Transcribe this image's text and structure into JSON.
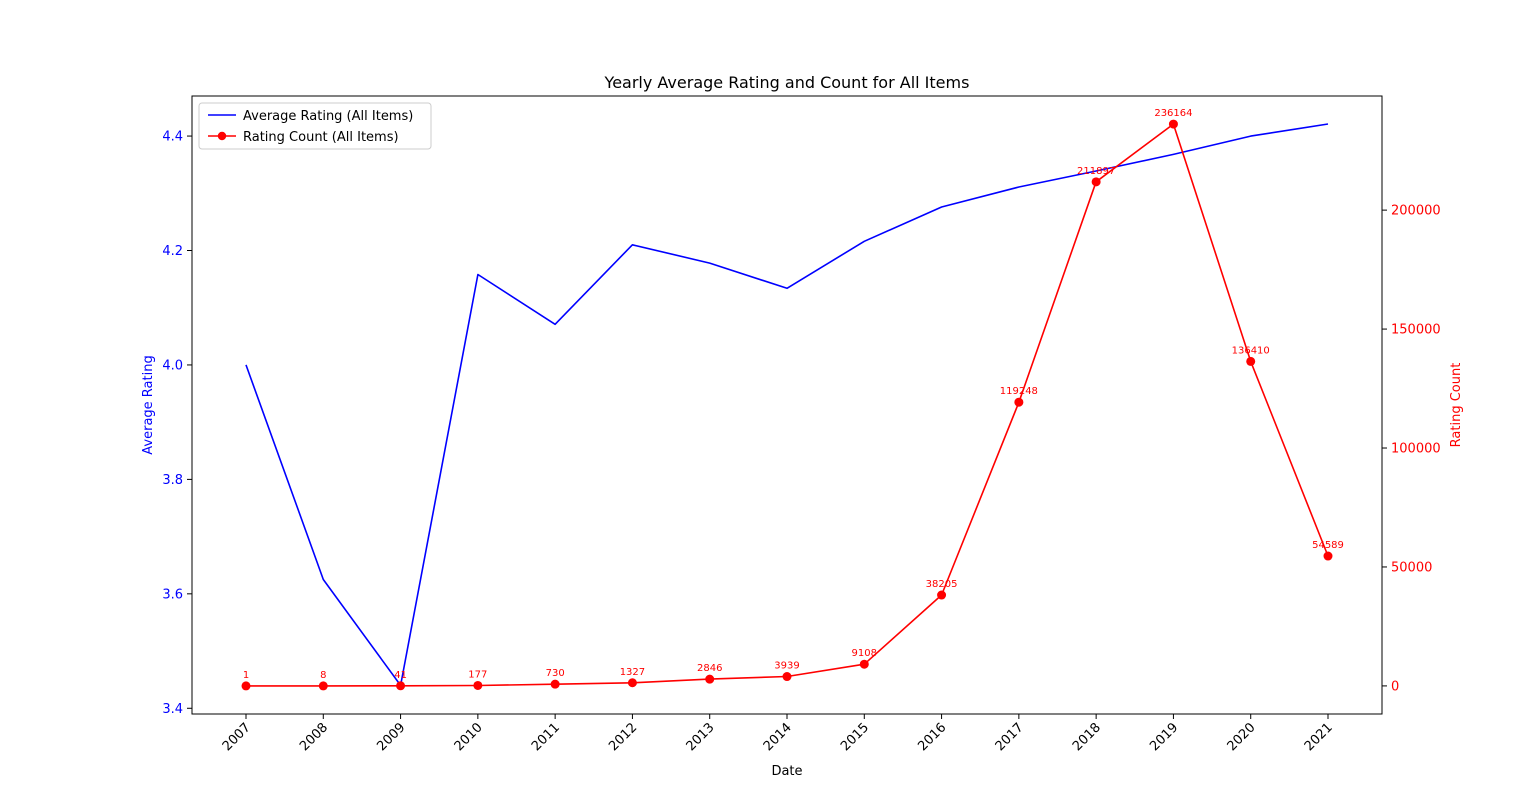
{
  "chart_data": {
    "type": "line",
    "title": "Yearly Average Rating and Count for All Items",
    "xlabel": "Date",
    "categories": [
      "2007",
      "2008",
      "2009",
      "2010",
      "2011",
      "2012",
      "2013",
      "2014",
      "2015",
      "2016",
      "2017",
      "2018",
      "2019",
      "2020",
      "2021"
    ],
    "left_axis": {
      "label": "Average Rating",
      "color": "#0000ff",
      "ylim": [
        3.39,
        4.47
      ],
      "ticks": [
        "3.4",
        "3.6",
        "3.8",
        "4.0",
        "4.2",
        "4.4"
      ],
      "tick_values": [
        3.4,
        3.6,
        3.8,
        4.0,
        4.2,
        4.4
      ]
    },
    "right_axis": {
      "label": "Rating Count",
      "color": "#ff0000",
      "ylim": [
        -11808,
        247972
      ],
      "ticks": [
        "0",
        "50000",
        "100000",
        "150000",
        "200000"
      ],
      "tick_values": [
        0,
        50000,
        100000,
        150000,
        200000
      ]
    },
    "series": [
      {
        "name": "Average Rating (All Items)",
        "axis": "left",
        "color": "#0000ff",
        "marker": false,
        "values": [
          4.0,
          3.625,
          3.44,
          4.158,
          4.071,
          4.21,
          4.178,
          4.134,
          4.216,
          4.276,
          4.311,
          4.339,
          4.368,
          4.4,
          4.421
        ]
      },
      {
        "name": "Rating Count (All Items)",
        "axis": "right",
        "color": "#ff0000",
        "marker": true,
        "values": [
          1,
          8,
          41,
          177,
          730,
          1327,
          2846,
          3939,
          9108,
          38205,
          119248,
          211897,
          236164,
          136410,
          54589
        ],
        "labels": [
          "1",
          "8",
          "41",
          "177",
          "730",
          "1327",
          "2846",
          "3939",
          "9108",
          "38205",
          "119248",
          "211897",
          "236164",
          "136410",
          "54589"
        ]
      }
    ],
    "legend": {
      "location": "upper left",
      "items": [
        "Average Rating (All Items)",
        "Rating Count (All Items)"
      ]
    },
    "grid": false
  }
}
